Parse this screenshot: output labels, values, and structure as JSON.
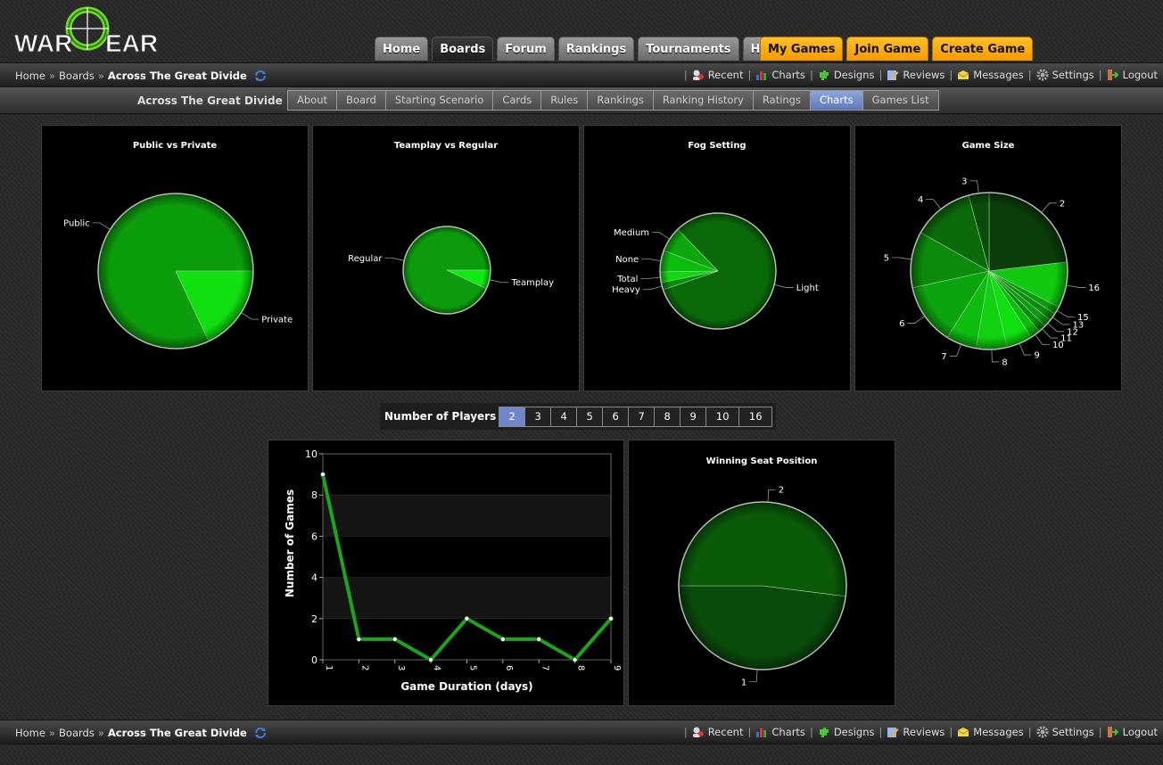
{
  "logo": {
    "text_left": "WAR",
    "text_g": "G",
    "text_right": "EAR"
  },
  "main_tabs": [
    {
      "label": "Home",
      "state": "normal"
    },
    {
      "label": "Boards",
      "state": "active"
    },
    {
      "label": "Forum",
      "state": "normal"
    },
    {
      "label": "Rankings",
      "state": "normal"
    },
    {
      "label": "Tournaments",
      "state": "normal"
    },
    {
      "label": "Help",
      "state": "normal"
    }
  ],
  "action_tabs": [
    {
      "label": "My Games"
    },
    {
      "label": "Join Game"
    },
    {
      "label": "Create Game"
    }
  ],
  "breadcrumb": {
    "home": "Home",
    "sep": "»",
    "boards": "Boards",
    "current": "Across The Great Divide"
  },
  "user_menu": [
    {
      "label": "Recent",
      "icon": "recent-icon"
    },
    {
      "label": "Charts",
      "icon": "charts-icon"
    },
    {
      "label": "Designs",
      "icon": "designs-icon"
    },
    {
      "label": "Reviews",
      "icon": "reviews-icon"
    },
    {
      "label": "Messages",
      "icon": "messages-icon"
    },
    {
      "label": "Settings",
      "icon": "settings-icon"
    },
    {
      "label": "Logout",
      "icon": "logout-icon"
    }
  ],
  "board_nav": {
    "title": "Across The Great Divide",
    "tabs": [
      {
        "label": "About"
      },
      {
        "label": "Board"
      },
      {
        "label": "Starting Scenario"
      },
      {
        "label": "Cards"
      },
      {
        "label": "Rules"
      },
      {
        "label": "Rankings"
      },
      {
        "label": "Ranking History"
      },
      {
        "label": "Ratings"
      },
      {
        "label": "Charts",
        "active": true
      },
      {
        "label": "Games List"
      }
    ]
  },
  "players_filter": {
    "label": "Number of Players",
    "options": [
      "2",
      "3",
      "4",
      "5",
      "6",
      "7",
      "8",
      "9",
      "10",
      "16"
    ],
    "selected": "2"
  },
  "colors": {
    "pie_border": "#bbbbbb",
    "line": "#1aa51a",
    "active_tab": "#6f86cb",
    "orange": "#f8a90d"
  },
  "chart_data": [
    {
      "type": "pie",
      "title": "Public vs Private",
      "slices": [
        {
          "label": "Public",
          "value": 82,
          "color": "#0c9d0c"
        },
        {
          "label": "Private",
          "value": 18,
          "color": "#10e010"
        }
      ]
    },
    {
      "type": "pie",
      "title": "Teamplay vs Regular",
      "slices": [
        {
          "label": "Regular",
          "value": 93,
          "color": "#0c9b0c"
        },
        {
          "label": "Teamplay",
          "value": 7,
          "color": "#12e812"
        }
      ]
    },
    {
      "type": "pie",
      "title": "Fog Setting",
      "slices": [
        {
          "label": "Light",
          "value": 82,
          "color": "#0a6a0a"
        },
        {
          "label": "Heavy",
          "value": 2,
          "color": "#0b8a0b"
        },
        {
          "label": "Total",
          "value": 3,
          "color": "#10d810"
        },
        {
          "label": "None",
          "value": 6,
          "color": "#0dbd0d"
        },
        {
          "label": "Medium",
          "value": 7,
          "color": "#0da70d"
        }
      ]
    },
    {
      "type": "pie",
      "title": "Game Size",
      "slices": [
        {
          "label": "2",
          "value": 22,
          "color": "#0a3d0a"
        },
        {
          "label": "16",
          "value": 9,
          "color": "#10c910"
        },
        {
          "label": "15",
          "value": 1.5,
          "color": "#0c9a0c"
        },
        {
          "label": "13",
          "value": 1.5,
          "color": "#0b8a0b"
        },
        {
          "label": "12",
          "value": 1.5,
          "color": "#0c9a0c"
        },
        {
          "label": "11",
          "value": 1.5,
          "color": "#0b8a0b"
        },
        {
          "label": "10",
          "value": 2,
          "color": "#0dbd0d"
        },
        {
          "label": "9",
          "value": 5,
          "color": "#10e010"
        },
        {
          "label": "8",
          "value": 6,
          "color": "#10d010"
        },
        {
          "label": "7",
          "value": 6,
          "color": "#0dbd0d"
        },
        {
          "label": "6",
          "value": 12,
          "color": "#0ca40c"
        },
        {
          "label": "5",
          "value": 11,
          "color": "#0b8a0b"
        },
        {
          "label": "4",
          "value": 12,
          "color": "#0a6a0a"
        },
        {
          "label": "3",
          "value": 4,
          "color": "#0a4d0a"
        }
      ]
    },
    {
      "type": "line",
      "title": "",
      "xlabel": "Game Duration (days)",
      "ylabel": "Number of Games",
      "x": [
        1,
        2,
        3,
        4,
        5,
        6,
        7,
        8,
        9
      ],
      "y": [
        9,
        1,
        1,
        0,
        2,
        1,
        1,
        0,
        2
      ],
      "ylim": [
        0,
        10
      ],
      "yticks": [
        0,
        2,
        4,
        6,
        8,
        10
      ],
      "grid": "alternating bands",
      "color": "#1aa51a"
    },
    {
      "type": "pie",
      "title": "Winning Seat Position",
      "slices": [
        {
          "label": "1",
          "value": 48,
          "color": "#0a4a0a"
        },
        {
          "label": "2",
          "value": 52,
          "color": "#0a5a0a"
        }
      ]
    }
  ]
}
